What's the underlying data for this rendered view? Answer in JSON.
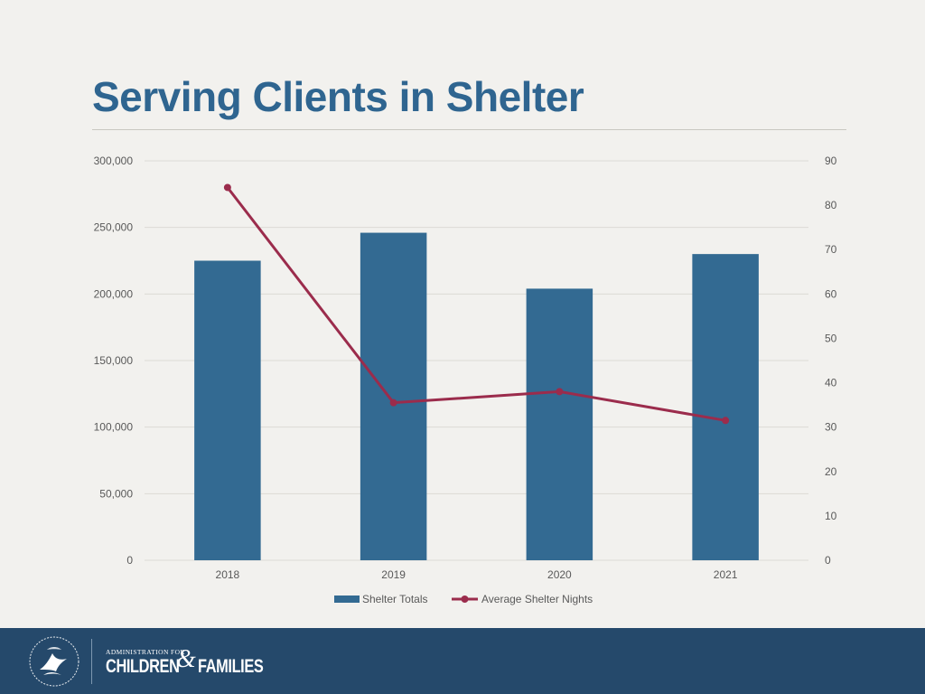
{
  "slide": {
    "title": "Serving Clients in Shelter"
  },
  "footer": {
    "admin_line": "Administration for",
    "brand_left": "CHILDREN",
    "brand_amp": "&",
    "brand_right": "FAMILIES",
    "seal_icon": "hhs-eagle-seal-icon"
  },
  "colors": {
    "title": "#2f6590",
    "bar": "#336a92",
    "line": "#9b2c4c",
    "grid": "#dcdad5",
    "axis_text": "#595959",
    "footer_bg": "#25496b"
  },
  "chart_data": {
    "type": "bar",
    "title": "",
    "xlabel": "",
    "ylabel": "",
    "categories": [
      "2018",
      "2019",
      "2020",
      "2021"
    ],
    "ylim": [
      0,
      300000
    ],
    "y_ticks": [
      "300,000",
      "250,000",
      "200,000",
      "150,000",
      "100,000",
      "50,000",
      "0"
    ],
    "y_tick_values": [
      300000,
      250000,
      200000,
      150000,
      100000,
      50000,
      0
    ],
    "y2lim": [
      0,
      90
    ],
    "y2_ticks": [
      "90",
      "80",
      "70",
      "60",
      "50",
      "40",
      "30",
      "20",
      "10",
      "0"
    ],
    "y2_tick_values": [
      90,
      80,
      70,
      60,
      50,
      40,
      30,
      20,
      10,
      0
    ],
    "grid": true,
    "legend_position": "bottom-center",
    "series": [
      {
        "name": "Shelter Totals",
        "type": "bar",
        "axis": "left",
        "values": [
          225000,
          246000,
          204000,
          230000
        ]
      },
      {
        "name": "Average Shelter Nights",
        "type": "line",
        "axis": "right",
        "values": [
          84,
          35.5,
          38,
          31.5
        ]
      }
    ]
  }
}
